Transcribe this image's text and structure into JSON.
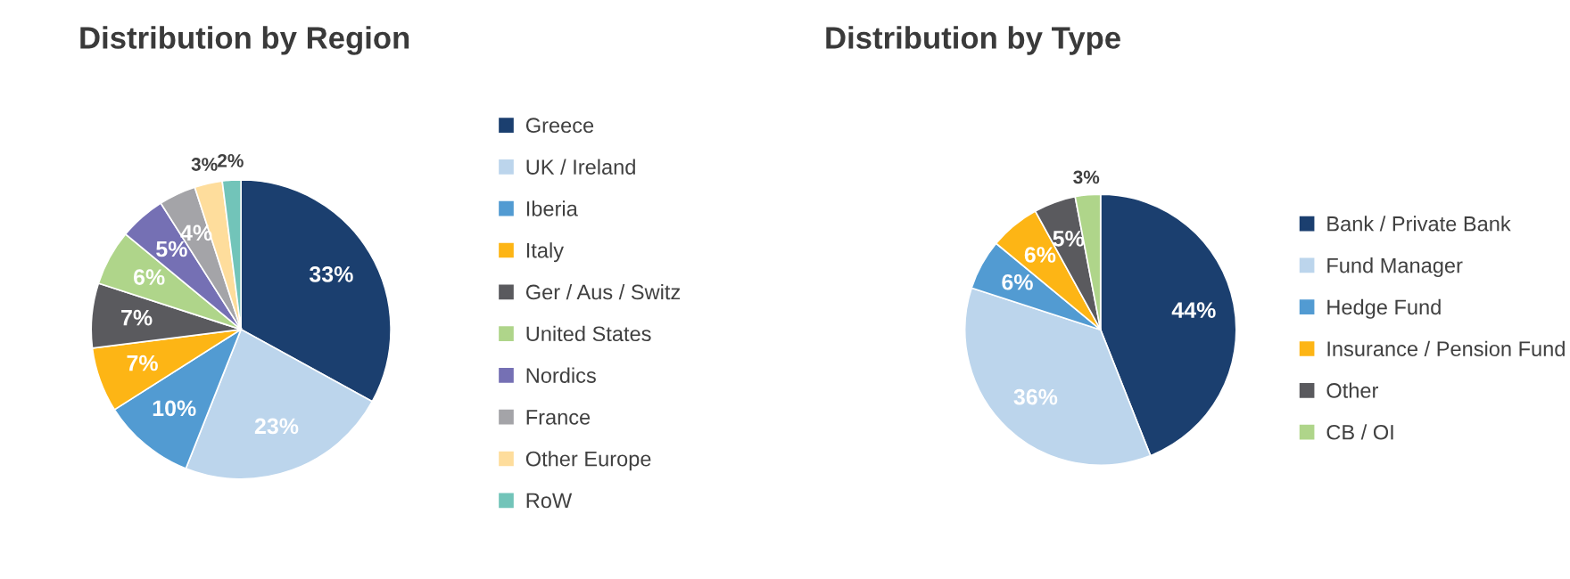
{
  "chart_data": [
    {
      "type": "pie",
      "title": "Distribution by Region",
      "legend": "right",
      "categories": [
        "Greece",
        "UK / Ireland",
        "Iberia",
        "Italy",
        "Ger / Aus / Switz",
        "United States",
        "Nordics",
        "France",
        "Other Europe",
        "RoW"
      ],
      "values": [
        33,
        23,
        10,
        7,
        7,
        6,
        5,
        4,
        3,
        2
      ],
      "value_labels": [
        "33%",
        "23%",
        "10%",
        "7%",
        "7%",
        "6%",
        "5%",
        "4%",
        "3%",
        "2%"
      ],
      "colors": [
        "#1b3f6f",
        "#bcd5ec",
        "#529bd2",
        "#fdb515",
        "#5a5a5e",
        "#afd58a",
        "#7570b4",
        "#a4a4a8",
        "#fedd9c",
        "#72c4b9"
      ]
    },
    {
      "type": "pie",
      "title": "Distribution by Type",
      "legend": "right",
      "categories": [
        "Bank / Private Bank",
        "Fund Manager",
        "Hedge Fund",
        "Insurance / Pension Fund",
        "Other",
        "CB / OI"
      ],
      "values": [
        44,
        36,
        6,
        6,
        5,
        3
      ],
      "value_labels": [
        "44%",
        "36%",
        "6%",
        "6%",
        "5%",
        "3%"
      ],
      "colors": [
        "#1b3f6f",
        "#bcd5ec",
        "#529bd2",
        "#fdb515",
        "#5a5a5e",
        "#afd58a"
      ]
    }
  ]
}
